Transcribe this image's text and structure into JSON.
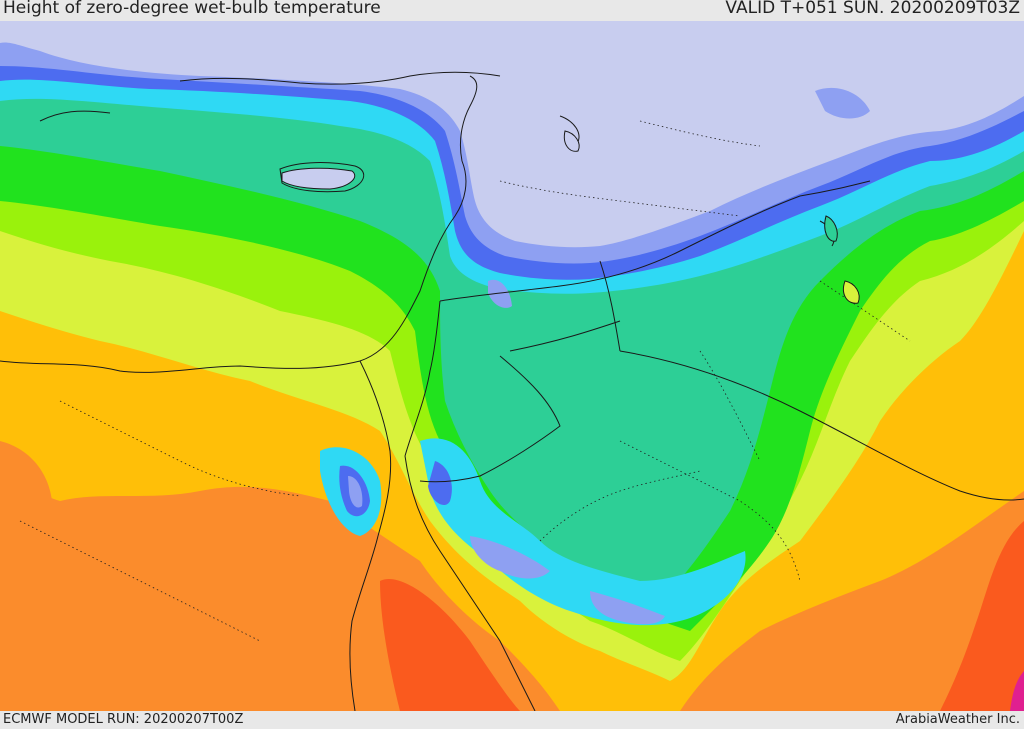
{
  "header": {
    "title": "Height of zero-degree wet-bulb temperature",
    "valid": "VALID T+051 SUN. 20200209T03Z"
  },
  "footer": {
    "model_run": "ECMWF MODEL RUN: 20200207T00Z",
    "credit": "ArabiaWeather Inc."
  },
  "colors": {
    "land_cold": "#c8cdef",
    "lavender": "#8ea0f2",
    "blue": "#4d6cf0",
    "cyan": "#2fd9f4",
    "teal": "#2dcf96",
    "green": "#21e21e",
    "lime": "#9af20c",
    "yellow": "#d9f23c",
    "gold": "#ffbf08",
    "orange": "#fb8c2c",
    "red_orange": "#fa5a1e",
    "magenta": "#e02090",
    "border": "#1a1a1a"
  }
}
